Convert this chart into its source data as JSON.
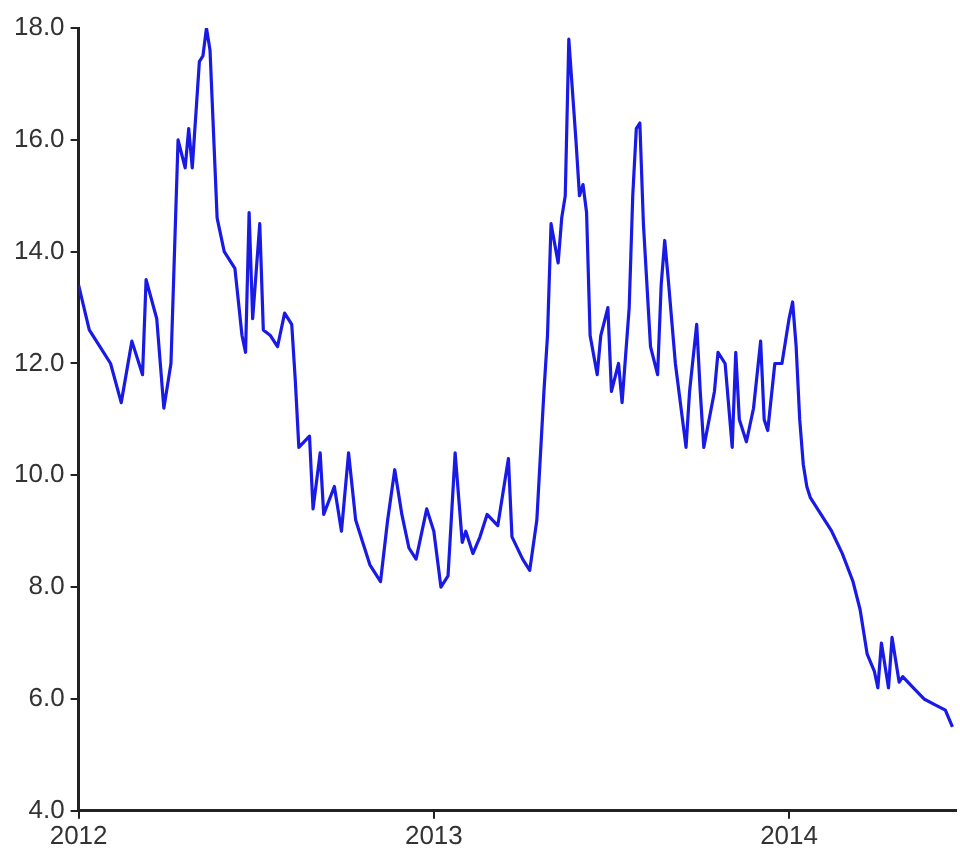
{
  "chart_data": {
    "type": "line",
    "xlim": [
      2012,
      2014.47
    ],
    "xticks": [
      2012,
      2013,
      2014
    ],
    "ylim": [
      4,
      18
    ],
    "yticks": [
      {
        "value": 4,
        "label": "4.0"
      },
      {
        "value": 6,
        "label": "6.0"
      },
      {
        "value": 8,
        "label": "8.0"
      },
      {
        "value": 10,
        "label": "10.0"
      },
      {
        "value": 12,
        "label": "12.0"
      },
      {
        "value": 14,
        "label": "14.0"
      },
      {
        "value": 16,
        "label": "16.0"
      },
      {
        "value": 18,
        "label": "18.0"
      }
    ],
    "grid": false,
    "legend": false,
    "marker": "none",
    "line_style": "solid",
    "series": [
      {
        "color": "#1a1ae6",
        "x": [
          2012.0,
          2012.03,
          2012.06,
          2012.09,
          2012.12,
          2012.15,
          2012.18,
          2012.19,
          2012.22,
          2012.24,
          2012.26,
          2012.27,
          2012.28,
          2012.3,
          2012.31,
          2012.32,
          2012.34,
          2012.35,
          2012.36,
          2012.37,
          2012.39,
          2012.41,
          2012.44,
          2012.46,
          2012.47,
          2012.48,
          2012.49,
          2012.51,
          2012.52,
          2012.54,
          2012.56,
          2012.58,
          2012.6,
          2012.61,
          2012.62,
          2012.65,
          2012.66,
          2012.68,
          2012.69,
          2012.72,
          2012.74,
          2012.76,
          2012.78,
          2012.8,
          2012.82,
          2012.85,
          2012.87,
          2012.89,
          2012.91,
          2012.93,
          2012.95,
          2012.98,
          2013.0,
          2013.02,
          2013.04,
          2013.06,
          2013.08,
          2013.09,
          2013.11,
          2013.13,
          2013.15,
          2013.18,
          2013.21,
          2013.22,
          2013.25,
          2013.27,
          2013.29,
          2013.31,
          2013.32,
          2013.33,
          2013.35,
          2013.36,
          2013.37,
          2013.38,
          2013.4,
          2013.41,
          2013.42,
          2013.43,
          2013.44,
          2013.46,
          2013.47,
          2013.49,
          2013.5,
          2013.52,
          2013.53,
          2013.55,
          2013.56,
          2013.57,
          2013.58,
          2013.59,
          2013.61,
          2013.63,
          2013.64,
          2013.65,
          2013.66,
          2013.68,
          2013.7,
          2013.71,
          2013.72,
          2013.74,
          2013.75,
          2013.76,
          2013.79,
          2013.8,
          2013.82,
          2013.84,
          2013.85,
          2013.86,
          2013.88,
          2013.9,
          2013.92,
          2013.93,
          2013.94,
          2013.96,
          2013.98,
          2014.0,
          2014.01,
          2014.02,
          2014.03,
          2014.04,
          2014.05,
          2014.06,
          2014.09,
          2014.12,
          2014.15,
          2014.18,
          2014.2,
          2014.22,
          2014.24,
          2014.25,
          2014.26,
          2014.28,
          2014.29,
          2014.31,
          2014.32,
          2014.35,
          2014.38,
          2014.41,
          2014.44,
          2014.46
        ],
        "values": [
          13.4,
          12.6,
          12.3,
          12.0,
          11.3,
          12.4,
          11.8,
          13.5,
          12.8,
          11.2,
          12.0,
          14.0,
          16.0,
          15.5,
          16.2,
          15.5,
          17.4,
          17.5,
          18.0,
          17.6,
          14.6,
          14.0,
          13.7,
          12.5,
          12.2,
          14.7,
          12.8,
          14.5,
          12.6,
          12.5,
          12.3,
          12.9,
          12.7,
          11.7,
          10.5,
          10.7,
          9.4,
          10.4,
          9.3,
          9.8,
          9.0,
          10.4,
          9.2,
          8.8,
          8.4,
          8.1,
          9.2,
          10.1,
          9.3,
          8.7,
          8.5,
          9.4,
          9.0,
          8.0,
          8.2,
          10.4,
          8.8,
          9.0,
          8.6,
          8.9,
          9.3,
          9.1,
          10.3,
          8.9,
          8.5,
          8.3,
          9.2,
          11.5,
          12.5,
          14.5,
          13.8,
          14.6,
          15.0,
          17.8,
          16.0,
          15.0,
          15.2,
          14.7,
          12.5,
          11.8,
          12.5,
          13.0,
          11.5,
          12.0,
          11.3,
          13.0,
          15.0,
          16.2,
          16.3,
          14.5,
          12.3,
          11.8,
          13.4,
          14.2,
          13.5,
          12.0,
          11.0,
          10.5,
          11.5,
          12.7,
          11.5,
          10.5,
          11.5,
          12.2,
          12.0,
          10.5,
          12.2,
          11.0,
          10.6,
          11.2,
          12.4,
          11.0,
          10.8,
          12.0,
          12.0,
          12.8,
          13.1,
          12.3,
          11.0,
          10.2,
          9.8,
          9.6,
          9.3,
          9.0,
          8.6,
          8.1,
          7.6,
          6.8,
          6.5,
          6.2,
          7.0,
          6.2,
          7.1,
          6.3,
          6.4,
          6.2,
          6.0,
          5.9,
          5.8,
          5.5
        ]
      }
    ]
  }
}
